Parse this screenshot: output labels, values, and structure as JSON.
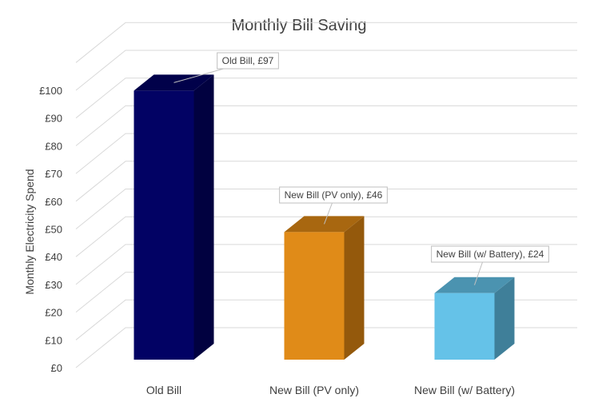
{
  "chart_data": {
    "type": "bar",
    "title": "Monthly Bill Saving",
    "xlabel": "",
    "ylabel": "Monthly Electricity Spend",
    "categories": [
      "Old Bill",
      "New Bill (PV only)",
      "New Bill (w/ Battery)"
    ],
    "values": [
      97,
      46,
      24
    ],
    "data_labels": [
      "Old Bill, £97",
      "New Bill (PV only), £46",
      "New Bill (w/ Battery), £24"
    ],
    "ylim": [
      0,
      110
    ],
    "yticks": [
      0,
      10,
      20,
      30,
      40,
      50,
      60,
      70,
      80,
      90,
      100
    ],
    "ytick_labels": [
      "£0",
      "£10",
      "£20",
      "£30",
      "£40",
      "£50",
      "£60",
      "£70",
      "£80",
      "£90",
      "£100"
    ],
    "grid": true,
    "legend": "none",
    "bar_colors": [
      {
        "front": "#020264",
        "side": "#010140",
        "top": "#01014a"
      },
      {
        "front": "#e08b18",
        "side": "#94590c",
        "top": "#a86710"
      },
      {
        "front": "#65c2e8",
        "side": "#3f7f99",
        "top": "#4b93b0"
      }
    ]
  }
}
